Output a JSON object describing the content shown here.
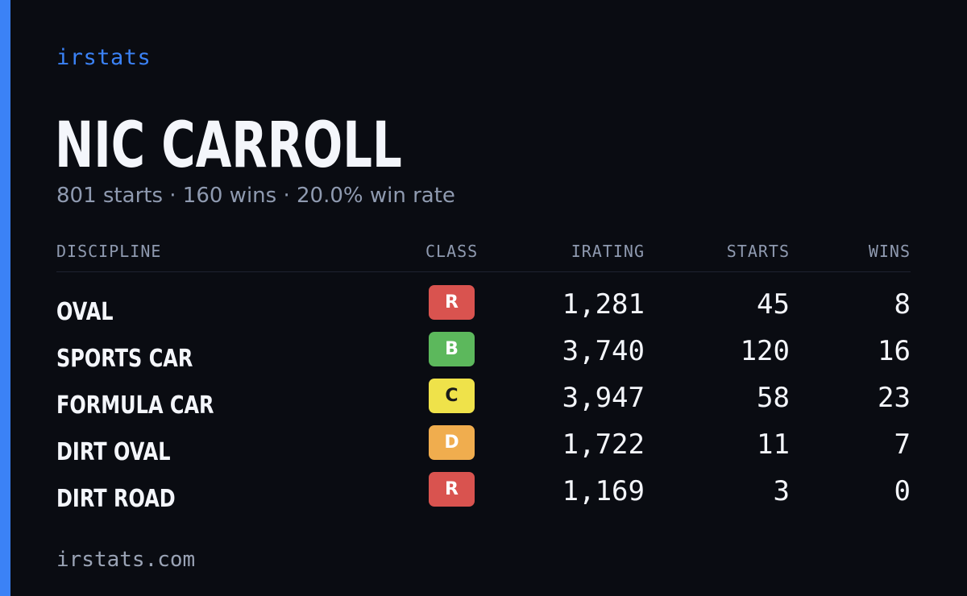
{
  "brand": "irstats",
  "driver": {
    "name": "NIC CARROLL",
    "summary": "801 starts · 160 wins · 20.0% win rate"
  },
  "table": {
    "headers": {
      "discipline": "DISCIPLINE",
      "class": "CLASS",
      "irating": "IRATING",
      "starts": "STARTS",
      "wins": "WINS"
    },
    "rows": [
      {
        "discipline": "OVAL",
        "class": "R",
        "class_color": "#d9534f",
        "class_text_color": "#ffffff",
        "irating": "1,281",
        "starts": "45",
        "wins": "8"
      },
      {
        "discipline": "SPORTS CAR",
        "class": "B",
        "class_color": "#5cb85c",
        "class_text_color": "#ffffff",
        "irating": "3,740",
        "starts": "120",
        "wins": "16"
      },
      {
        "discipline": "FORMULA CAR",
        "class": "C",
        "class_color": "#efe24a",
        "class_text_color": "#1a1a1a",
        "irating": "3,947",
        "starts": "58",
        "wins": "23"
      },
      {
        "discipline": "DIRT OVAL",
        "class": "D",
        "class_color": "#f0ad4e",
        "class_text_color": "#ffffff",
        "irating": "1,722",
        "starts": "11",
        "wins": "7"
      },
      {
        "discipline": "DIRT ROAD",
        "class": "R",
        "class_color": "#d9534f",
        "class_text_color": "#ffffff",
        "irating": "1,169",
        "starts": "3",
        "wins": "0"
      }
    ]
  },
  "footer": "irstats.com",
  "colors": {
    "accent": "#3b82f6",
    "background": "#0a0c12"
  }
}
